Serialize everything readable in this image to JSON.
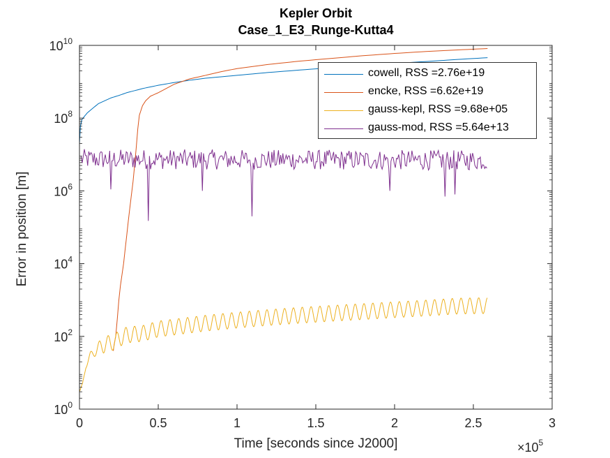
{
  "chart_data": {
    "type": "line",
    "title": [
      "Kepler Orbit",
      "Case_1_E3_Runge-Kutta4"
    ],
    "xlabel": "Time [seconds since J2000]",
    "ylabel": "Error in position [m]",
    "x_exponent_label": "×10",
    "x_exponent": "5",
    "x_scale": 100000,
    "xlim": [
      0,
      300000
    ],
    "ylim": [
      1,
      10000000000
    ],
    "yscale": "log",
    "x_ticks": [
      0,
      50000,
      100000,
      150000,
      200000,
      250000,
      300000
    ],
    "x_tick_labels": [
      "0",
      "0.5",
      "1",
      "1.5",
      "2",
      "2.5",
      "3"
    ],
    "y_ticks": [
      1,
      100,
      10000,
      1000000,
      100000000,
      10000000000
    ],
    "y_tick_bases": [
      "10",
      "10",
      "10",
      "10",
      "10",
      "10"
    ],
    "y_tick_exponents": [
      "0",
      "2",
      "4",
      "6",
      "8",
      "10"
    ],
    "grid": false,
    "legend_position": "top-right",
    "series": [
      {
        "name": "cowell, RSS =2.76e+19",
        "color": "#0072BD",
        "x": [
          0,
          600,
          1500,
          3000,
          5000,
          8000,
          12000,
          16000,
          20000,
          25000,
          30000,
          40000,
          50000,
          60000,
          70000,
          80000,
          100000,
          120000,
          140000,
          160000,
          180000,
          200000,
          220000,
          240000,
          259000
        ],
        "y": [
          20000000,
          60000000,
          90000000,
          110000000,
          140000000,
          180000000,
          250000000,
          300000000,
          360000000,
          420000000,
          500000000,
          650000000,
          800000000,
          950000000,
          1100000000,
          1250000000,
          1500000000,
          1800000000,
          2100000000,
          2450000000,
          2800000000,
          3200000000,
          3600000000,
          4100000000,
          4600000000
        ]
      },
      {
        "name": "encke, RSS =6.62e+19",
        "color": "#D95319",
        "x": [
          21500,
          22000,
          23000,
          24000,
          25000,
          26000,
          27000,
          28000,
          29000,
          30000,
          31000,
          32000,
          33000,
          34000,
          35000,
          36000,
          37000,
          38000,
          40000,
          42000,
          45000,
          50000,
          55000,
          60000,
          70000,
          80000,
          90000,
          100000,
          120000,
          140000,
          160000,
          180000,
          200000,
          220000,
          240000,
          259000
        ],
        "y": [
          40,
          60,
          100,
          300,
          1000,
          2500,
          5000,
          10000,
          25000,
          60000,
          150000,
          350000,
          800000,
          1800000,
          5000000,
          15000000,
          50000000,
          120000000,
          220000000,
          300000000,
          400000000,
          500000000,
          650000000,
          850000000,
          1200000000,
          1500000000,
          1900000000,
          2300000000,
          3000000000,
          3700000000,
          4400000000,
          5200000000,
          6000000000,
          6800000000,
          7500000000,
          8200000000
        ]
      },
      {
        "name": "gauss-kepl, RSS =9.68e+05",
        "color": "#EDB120",
        "x": [
          0,
          2000,
          4000,
          7000,
          10000,
          13000,
          16000,
          19000,
          22000,
          25000,
          30000,
          40000,
          50000,
          60000,
          80000,
          100000,
          120000,
          140000,
          160000,
          180000,
          200000,
          220000,
          240000,
          259000
        ],
        "y": [
          3,
          5,
          15,
          30,
          40,
          50,
          60,
          65,
          70,
          85,
          110,
          120,
          160,
          180,
          230,
          280,
          330,
          380,
          430,
          480,
          540,
          600,
          680,
          700
        ],
        "osc_period_s": 5600,
        "osc_amplitude_dex": 0.22
      },
      {
        "name": "gauss-mod, RSS =5.64e+13",
        "color": "#7E2F8E",
        "x": [
          1000,
          259000
        ],
        "y": [
          7000000,
          6500000
        ],
        "noise_band": [
          1000000,
          15000000
        ],
        "dips": [
          {
            "x": 43800,
            "y": 150000
          },
          {
            "x": 109500,
            "y": 200000
          },
          {
            "x": 78000,
            "y": 1000000
          },
          {
            "x": 20000,
            "y": 1100000
          },
          {
            "x": 232000,
            "y": 700000
          },
          {
            "x": 238000,
            "y": 800000
          },
          {
            "x": 197000,
            "y": 1000000
          }
        ]
      }
    ]
  }
}
